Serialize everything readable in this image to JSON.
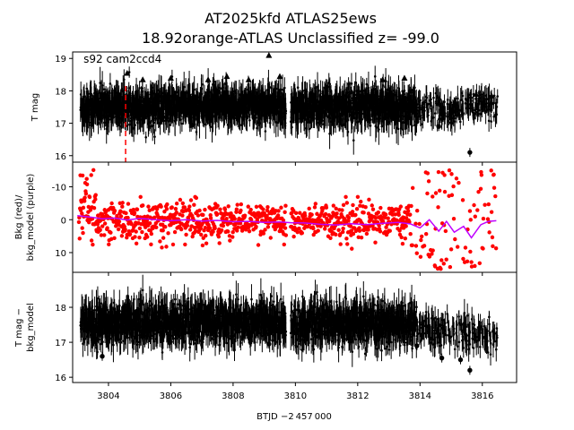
{
  "chart_data": {
    "type": "scatter",
    "title_line1": "AT2025kfd  ATLAS25ews",
    "title_line2": "18.92orange-ATLAS Unclassified z= -99.0",
    "xlabel": "BTJD −2 457 000",
    "annotation": "s92 cam2ccd4",
    "x_ticks": [
      3804,
      3806,
      3808,
      3810,
      3812,
      3814,
      3816
    ],
    "xlim": [
      3802.85,
      3817.1
    ],
    "vertical_marker_x": 3804.55,
    "gap": [
      3809.7,
      3809.85
    ],
    "panels": [
      {
        "ylabel": "T mag",
        "ylim": [
          19.2,
          15.8
        ],
        "inverted": true,
        "y_ticks": [
          16,
          17,
          18,
          19
        ],
        "series": [
          {
            "kind": "points_with_errorbars",
            "color": "#000000",
            "band_center": [
              [
                3803.1,
                17.5
              ],
              [
                3809.7,
                17.55
              ],
              [
                3809.85,
                17.5
              ],
              [
                3813.8,
                17.55
              ],
              [
                3814.5,
                17.35
              ],
              [
                3815.5,
                17.45
              ],
              [
                3816.4,
                17.5
              ]
            ]
          },
          {
            "kind": "upper_limits",
            "color": "#000000",
            "marker": "triangle-up",
            "points": [
              [
                3804.6,
                18.55
              ],
              [
                3805.1,
                18.35
              ],
              [
                3806.0,
                18.4
              ],
              [
                3807.2,
                18.35
              ],
              [
                3807.8,
                18.45
              ],
              [
                3808.5,
                18.35
              ],
              [
                3809.15,
                19.1
              ],
              [
                3809.5,
                18.45
              ],
              [
                3812.8,
                18.35
              ],
              [
                3813.5,
                18.4
              ],
              [
                3815.8,
                17.9
              ],
              [
                3816.3,
                17.85
              ]
            ]
          },
          {
            "kind": "outliers",
            "color": "#000000",
            "points": [
              [
                3815.6,
                16.1
              ],
              [
                3803.3,
                17.1
              ],
              [
                3806.7,
                16.95
              ],
              [
                3814.6,
                16.9
              ],
              [
                3813.9,
                17.05
              ]
            ]
          }
        ]
      },
      {
        "ylabel": "Bkg (red)/\nbkg_model (purple)",
        "ylim": [
          -17.5,
          16
        ],
        "y_ticks": [
          -10,
          0,
          10
        ],
        "series": [
          {
            "kind": "points",
            "name": "Bkg",
            "color": "#ff0000"
          },
          {
            "kind": "line",
            "name": "bkg_model",
            "color": "#bf00ff",
            "points": [
              [
                3803.0,
                -1.2
              ],
              [
                3803.4,
                -0.8
              ],
              [
                3803.8,
                -0.3
              ],
              [
                3804.2,
                -0.5
              ],
              [
                3804.6,
                0.1
              ],
              [
                3805.0,
                -0.4
              ],
              [
                3805.5,
                0.0
              ],
              [
                3806.0,
                0.3
              ],
              [
                3806.5,
                0.0
              ],
              [
                3807.0,
                0.4
              ],
              [
                3807.5,
                0.2
              ],
              [
                3808.0,
                0.6
              ],
              [
                3808.5,
                0.5
              ],
              [
                3809.0,
                0.8
              ],
              [
                3809.5,
                0.7
              ],
              [
                3809.85,
                0.9
              ],
              [
                3810.3,
                1.0
              ],
              [
                3810.8,
                1.4
              ],
              [
                3811.3,
                1.6
              ],
              [
                3811.8,
                1.2
              ],
              [
                3812.3,
                1.5
              ],
              [
                3812.8,
                1.1
              ],
              [
                3813.3,
                0.8
              ],
              [
                3813.7,
                1.3
              ],
              [
                3814.0,
                2.5
              ],
              [
                3814.3,
                0.0
              ],
              [
                3814.6,
                3.5
              ],
              [
                3814.85,
                0.5
              ],
              [
                3815.1,
                3.8
              ],
              [
                3815.4,
                2.0
              ],
              [
                3815.65,
                5.5
              ],
              [
                3815.95,
                1.5
              ],
              [
                3816.2,
                0.5
              ],
              [
                3816.45,
                0.3
              ]
            ]
          }
        ]
      },
      {
        "ylabel": "T mag −\nbkg_model",
        "ylim": [
          19.0,
          15.85
        ],
        "inverted": true,
        "y_ticks": [
          16,
          17,
          18
        ],
        "series": [
          {
            "kind": "points_with_errorbars",
            "color": "#000000",
            "band_center": [
              [
                3803.1,
                17.55
              ],
              [
                3809.7,
                17.6
              ],
              [
                3809.85,
                17.55
              ],
              [
                3813.8,
                17.5
              ],
              [
                3814.5,
                17.25
              ],
              [
                3815.5,
                17.3
              ],
              [
                3816.4,
                17.2
              ]
            ]
          },
          {
            "kind": "outliers",
            "color": "#000000",
            "points": [
              [
                3815.6,
                16.2
              ],
              [
                3803.8,
                16.6
              ],
              [
                3809.15,
                16.95
              ],
              [
                3814.7,
                16.55
              ],
              [
                3815.3,
                16.5
              ],
              [
                3813.9,
                16.9
              ]
            ]
          }
        ]
      }
    ]
  }
}
